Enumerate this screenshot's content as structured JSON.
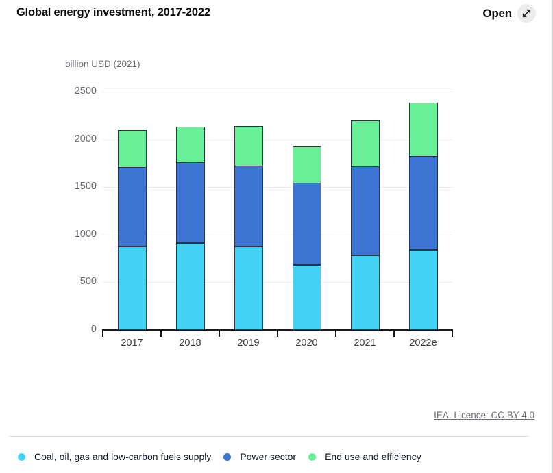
{
  "header": {
    "title": "Global energy investment, 2017-2022",
    "open_button": {
      "label": "Open",
      "icon": "expand-diagonal-arrow-icon"
    }
  },
  "chart_data": {
    "type": "bar",
    "stacked": true,
    "title": "Global energy investment, 2017-2022",
    "unit_label": "billion USD (2021)",
    "xlabel": "",
    "ylabel": "billion USD (2021)",
    "categories": [
      "2017",
      "2018",
      "2019",
      "2020",
      "2021",
      "2022e"
    ],
    "series": [
      {
        "id": "fuels-supply",
        "name": "Coal, oil, gas and low-carbon fuels supply",
        "color": "#45d2f7",
        "values": [
          880,
          910,
          880,
          680,
          785,
          840
        ]
      },
      {
        "id": "power-sector",
        "name": "Power sector",
        "color": "#3e74d2",
        "values": [
          825,
          845,
          840,
          860,
          925,
          975
        ]
      },
      {
        "id": "end-use-efficiency",
        "name": "End use and efficiency",
        "color": "#69ef97",
        "values": [
          385,
          375,
          415,
          375,
          480,
          565
        ]
      }
    ],
    "totals": [
      2090,
      2130,
      2135,
      1915,
      2190,
      2380
    ],
    "ylim": [
      0,
      2500
    ],
    "y_ticks": [
      0,
      500,
      1000,
      1500,
      2000,
      2500
    ],
    "grid": true,
    "legend_position": "bottom"
  },
  "footer": {
    "licence_link": "IEA. Licence: CC BY 4.0"
  },
  "colors": {
    "accent_cyan": "#45d2f7",
    "accent_blue": "#3e74d2",
    "accent_green": "#69ef97",
    "gridline": "#ececec",
    "axis": "#17171c"
  }
}
